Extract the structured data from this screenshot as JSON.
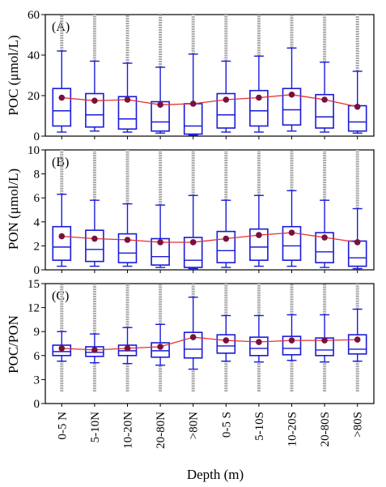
{
  "colors": {
    "box": "#1a1ad8",
    "mean_line": "#e23030",
    "mean_dot": "#7a1040",
    "outlier": "#a8a8a8",
    "axis": "#000000"
  },
  "chart_data": [
    {
      "type": "box",
      "panel_label": "(A)",
      "ylabel": "POC (μmol/L)",
      "xlabel": "",
      "ylim": [
        0,
        60
      ],
      "yticks": [
        0,
        20,
        40,
        60
      ],
      "grid": false,
      "categories": [
        "0-5 N",
        "5-10N",
        "10-20N",
        "20-80N",
        ">80N",
        "0-5 S",
        "5-10S",
        "10-20S",
        "20-80S",
        ">80S"
      ],
      "whisker_low": [
        2,
        2.5,
        2,
        1.5,
        0.5,
        2,
        2,
        2.5,
        2,
        1.5
      ],
      "q1": [
        5,
        4.5,
        3.5,
        2.5,
        1,
        4,
        5,
        5.5,
        4,
        2.5
      ],
      "median": [
        12.5,
        10.5,
        8.5,
        7,
        5,
        10.5,
        12.5,
        13,
        9.5,
        7
      ],
      "q3": [
        23.5,
        21,
        19.5,
        17,
        16,
        21,
        22.5,
        23.5,
        20.5,
        15
      ],
      "whisker_high": [
        42,
        37,
        36,
        34,
        40.5,
        37,
        39.5,
        43.5,
        36.5,
        32
      ],
      "mean": [
        19,
        17.5,
        18,
        15.5,
        16,
        18,
        19,
        20.5,
        18,
        14.5
      ],
      "outlier_high": [
        60,
        60,
        60,
        60,
        60,
        60,
        60,
        60,
        60,
        60
      ]
    },
    {
      "type": "box",
      "panel_label": "(B)",
      "ylabel": "PON (μmol/L)",
      "xlabel": "",
      "ylim": [
        0,
        10
      ],
      "yticks": [
        0,
        2,
        4,
        6,
        8,
        10
      ],
      "grid": false,
      "categories": [
        "0-5 N",
        "5-10N",
        "10-20N",
        "20-80N",
        ">80N",
        "0-5 S",
        "5-10S",
        "10-20S",
        "20-80S",
        ">80S"
      ],
      "whisker_low": [
        0.3,
        0.3,
        0.3,
        0.2,
        0.1,
        0.2,
        0.3,
        0.3,
        0.2,
        0.1
      ],
      "q1": [
        0.8,
        0.7,
        0.6,
        0.4,
        0.2,
        0.6,
        0.8,
        0.8,
        0.6,
        0.3
      ],
      "median": [
        1.9,
        1.7,
        1.4,
        1.1,
        0.8,
        1.6,
        1.9,
        2,
        1.5,
        1.0
      ],
      "q3": [
        3.6,
        3.3,
        3.0,
        2.6,
        2.7,
        3.2,
        3.4,
        3.6,
        3.1,
        2.4
      ],
      "whisker_high": [
        6.3,
        5.8,
        5.5,
        5.4,
        6.2,
        5.8,
        6.2,
        6.6,
        5.8,
        5.1
      ],
      "mean": [
        2.8,
        2.6,
        2.5,
        2.3,
        2.3,
        2.6,
        2.9,
        3.1,
        2.7,
        2.3
      ],
      "outlier_high": [
        10,
        10,
        10,
        10,
        10,
        10,
        10,
        10,
        10,
        10
      ]
    },
    {
      "type": "box",
      "panel_label": "(C)",
      "ylabel": "POC/PON",
      "xlabel": "Depth (m)",
      "ylim": [
        0,
        15
      ],
      "yticks": [
        0,
        3,
        6,
        9,
        12,
        15
      ],
      "grid": false,
      "categories": [
        "0-5 N",
        "5-10N",
        "10-20N",
        "20-80N",
        ">80N",
        "0-5 S",
        "5-10S",
        "10-20S",
        "20-80S",
        ">80S"
      ],
      "whisker_low": [
        5.3,
        5.1,
        5.0,
        4.8,
        4.3,
        5.3,
        5.2,
        5.4,
        5.2,
        5.3
      ],
      "q1": [
        6.0,
        5.9,
        6.0,
        5.8,
        5.7,
        6.3,
        6.0,
        6.1,
        6.0,
        6.2
      ],
      "median": [
        6.5,
        6.4,
        6.6,
        6.6,
        6.8,
        7.2,
        6.9,
        6.9,
        6.7,
        6.8
      ],
      "q3": [
        7.3,
        7.1,
        7.3,
        7.6,
        8.9,
        8.6,
        8.3,
        8.4,
        8.2,
        8.6
      ],
      "whisker_high": [
        9.0,
        8.7,
        9.5,
        9.9,
        13.3,
        11.0,
        11.0,
        11.1,
        11.1,
        11.8
      ],
      "mean": [
        6.9,
        6.7,
        6.9,
        7.1,
        8.3,
        7.9,
        7.7,
        7.9,
        7.9,
        8.0
      ],
      "outlier_low": [
        1.5,
        1.5,
        1.5,
        1.5,
        1.5,
        1.5,
        1.5,
        1.5,
        1.5,
        1.5
      ],
      "outlier_high": [
        15,
        15,
        15,
        15,
        15,
        15,
        15,
        15,
        15,
        15
      ]
    }
  ]
}
